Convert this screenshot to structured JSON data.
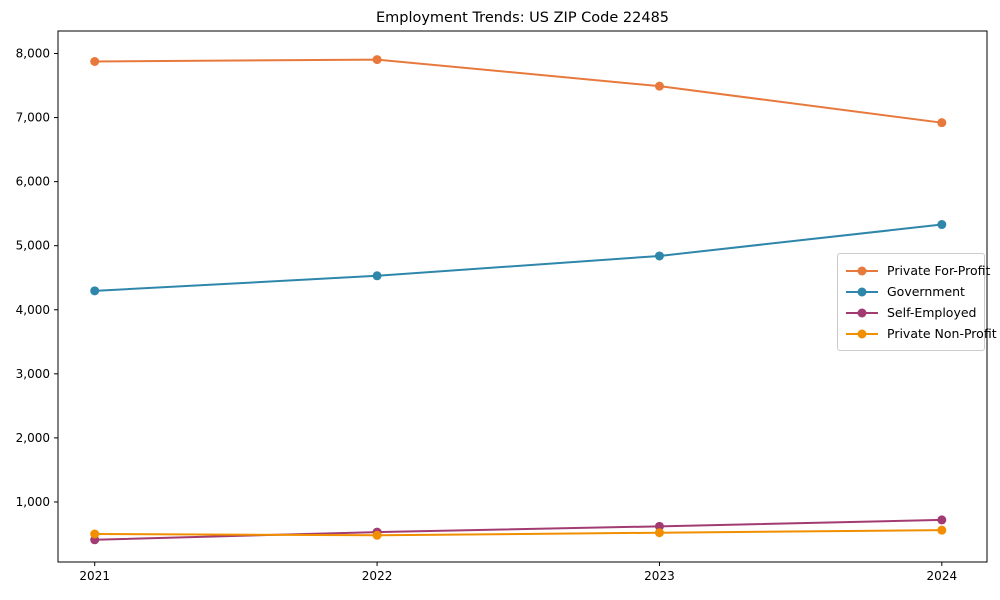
{
  "figure": {
    "background": "#ffffff",
    "plot_background": "#ffffff",
    "spine_color": "#000000"
  },
  "chart_data": {
    "type": "line",
    "title": "Employment Trends: US ZIP Code 22485",
    "xlabel": "",
    "ylabel": "",
    "grid": false,
    "marker": "o",
    "x": [
      2021,
      2022,
      2023,
      2024
    ],
    "x_tick_labels": [
      "2021",
      "2022",
      "2023",
      "2024"
    ],
    "y_ticks": [
      1000,
      2000,
      3000,
      4000,
      5000,
      6000,
      7000,
      8000
    ],
    "y_tick_labels": [
      "1,000",
      "2,000",
      "3,000",
      "4,000",
      "5,000",
      "6,000",
      "7,000",
      "8,000"
    ],
    "ylim": [
      63,
      8351
    ],
    "xlim": [
      2020.87,
      2024.16
    ],
    "legend_position": "center right",
    "series": [
      {
        "name": "Private For-Profit",
        "color": "#E8793D",
        "values": [
          7875,
          7905,
          7490,
          6920
        ]
      },
      {
        "name": "Government",
        "color": "#2E86AB",
        "values": [
          4295,
          4530,
          4840,
          5330
        ]
      },
      {
        "name": "Self-Employed",
        "color": "#A23B72",
        "values": [
          410,
          530,
          620,
          720
        ]
      },
      {
        "name": "Private Non-Profit",
        "color": "#F18F01",
        "values": [
          500,
          480,
          520,
          560
        ]
      }
    ]
  }
}
